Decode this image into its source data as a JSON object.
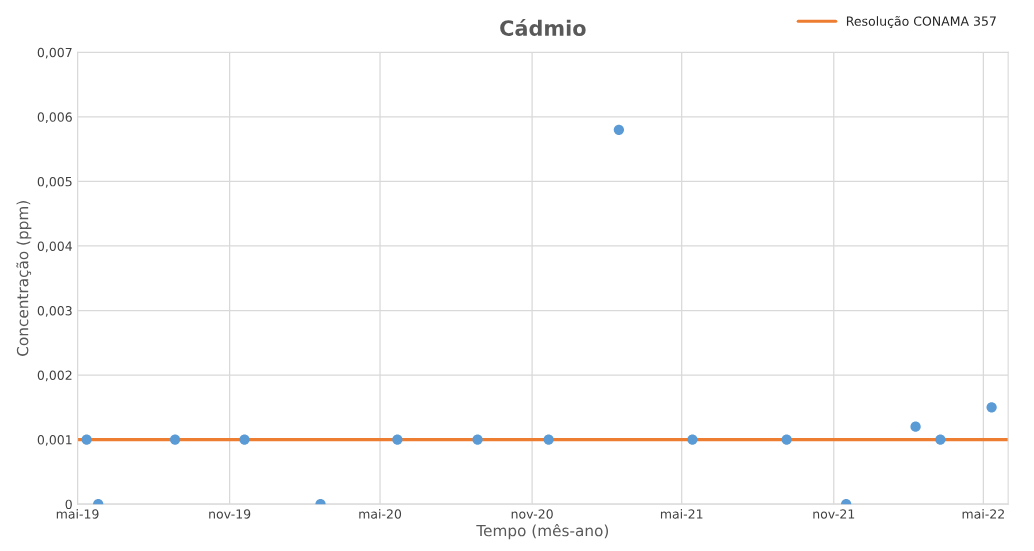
{
  "chart_data": {
    "type": "scatter",
    "title": "Cádmio",
    "xlabel": "Tempo (mês-ano)",
    "ylabel": "Concentração (ppm)",
    "x": [
      "2019-05-12",
      "2019-05-26",
      "2019-08-27",
      "2019-11-19",
      "2020-02-19",
      "2020-05-22",
      "2020-08-27",
      "2020-11-21",
      "2021-02-14",
      "2021-05-14",
      "2021-09-05",
      "2021-11-16",
      "2022-02-08",
      "2022-03-10",
      "2022-05-11"
    ],
    "series": [
      {
        "color": "#5b9bd5",
        "values": [
          0.001,
          0,
          0.001,
          0.001,
          0,
          0.001,
          0.001,
          0.001,
          0.0058,
          0.001,
          0.001,
          0,
          0.0012,
          0.001,
          0.0015
        ]
      }
    ],
    "marker": "circle",
    "ref_lines": [
      {
        "axis": "y",
        "value": 0.001,
        "label": "Resolução CONAMA 357",
        "color": "#ed7d31",
        "line_style": "solid"
      }
    ],
    "xlim": [
      "2019-05-01",
      "2022-05-31"
    ],
    "xticks": [
      {
        "value": "2019-05-01",
        "label": "mai-19"
      },
      {
        "value": "2019-11-01",
        "label": "nov-19"
      },
      {
        "value": "2020-05-01",
        "label": "mai-20"
      },
      {
        "value": "2020-11-01",
        "label": "nov-20"
      },
      {
        "value": "2021-05-01",
        "label": "mai-21"
      },
      {
        "value": "2021-11-01",
        "label": "nov-21"
      },
      {
        "value": "2022-05-01",
        "label": "mai-22"
      }
    ],
    "ylim": [
      0,
      0.007
    ],
    "yticks": [
      {
        "value": 0,
        "label": "0"
      },
      {
        "value": 0.001,
        "label": "0,001"
      },
      {
        "value": 0.002,
        "label": "0,002"
      },
      {
        "value": 0.003,
        "label": "0,003"
      },
      {
        "value": 0.004,
        "label": "0,004"
      },
      {
        "value": 0.005,
        "label": "0,005"
      },
      {
        "value": 0.006,
        "label": "0,006"
      },
      {
        "value": 0.007,
        "label": "0,007"
      }
    ],
    "grid": true,
    "legend": "top right"
  }
}
